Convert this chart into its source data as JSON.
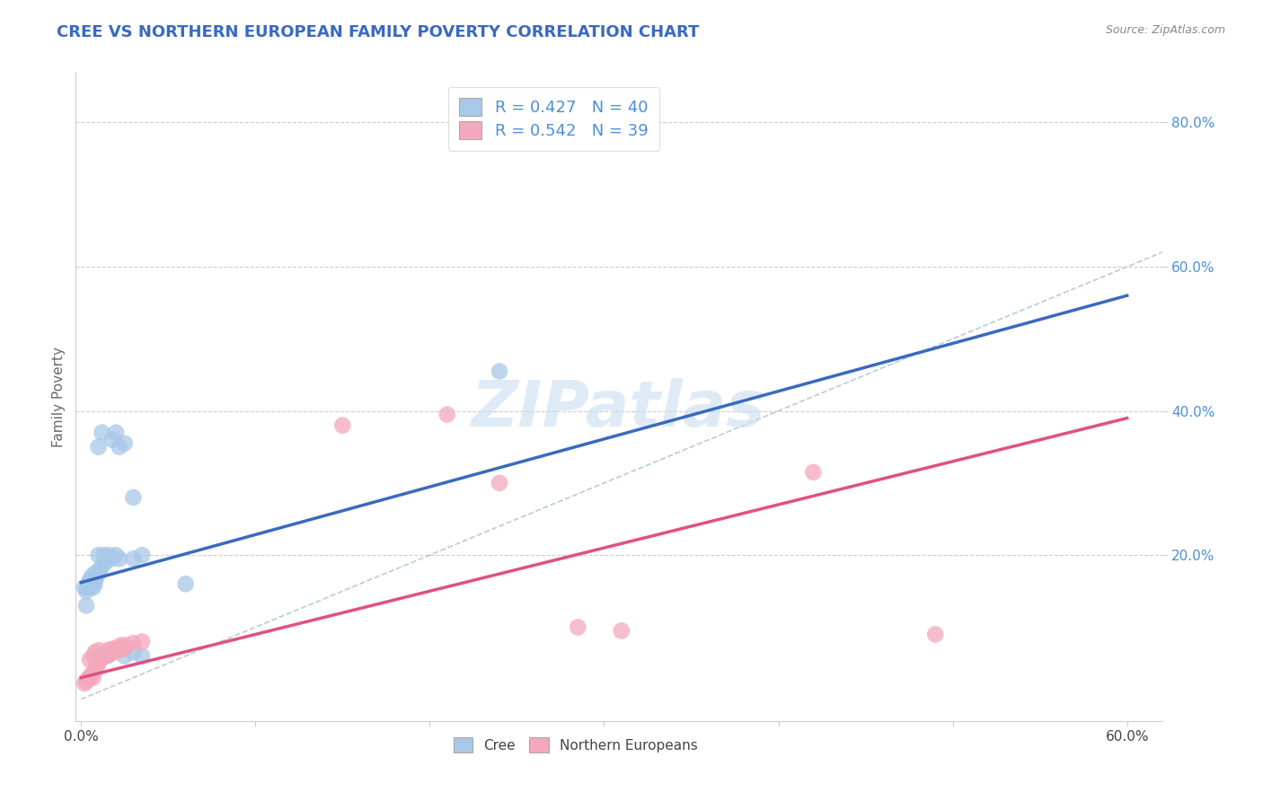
{
  "title": "CREE VS NORTHERN EUROPEAN FAMILY POVERTY CORRELATION CHART",
  "source": "Source: ZipAtlas.com",
  "ylabel": "Family Poverty",
  "xlim": [
    -0.003,
    0.62
  ],
  "ylim": [
    -0.03,
    0.87
  ],
  "xtick_vals": [
    0.0,
    0.1,
    0.2,
    0.3,
    0.4,
    0.5,
    0.6
  ],
  "xtick_bottom_labels": [
    "0.0%",
    "",
    "",
    "",
    "",
    "",
    "60.0%"
  ],
  "ytick_vals": [
    0.2,
    0.4,
    0.6,
    0.8
  ],
  "ytick_labels": [
    "20.0%",
    "40.0%",
    "60.0%",
    "80.0%"
  ],
  "legend_cree": "R = 0.427   N = 40",
  "legend_ne": "R = 0.542   N = 39",
  "cree_color": "#a8c8e8",
  "ne_color": "#f4a8bb",
  "cree_line_color": "#3a6abf",
  "ne_line_color": "#e05080",
  "diagonal_color": "#b0c8d8",
  "title_color": "#3a6abf",
  "axis_label_color": "#666666",
  "tick_color": "#4a90d9",
  "background_color": "#ffffff",
  "watermark_color": "#c8dff0",
  "cree_scatter": [
    [
      0.002,
      0.155
    ],
    [
      0.003,
      0.13
    ],
    [
      0.003,
      0.15
    ],
    [
      0.004,
      0.155
    ],
    [
      0.004,
      0.16
    ],
    [
      0.005,
      0.155
    ],
    [
      0.005,
      0.165
    ],
    [
      0.006,
      0.16
    ],
    [
      0.006,
      0.17
    ],
    [
      0.007,
      0.155
    ],
    [
      0.007,
      0.165
    ],
    [
      0.008,
      0.16
    ],
    [
      0.008,
      0.175
    ],
    [
      0.009,
      0.17
    ],
    [
      0.01,
      0.175
    ],
    [
      0.01,
      0.2
    ],
    [
      0.011,
      0.18
    ],
    [
      0.012,
      0.185
    ],
    [
      0.013,
      0.2
    ],
    [
      0.014,
      0.19
    ],
    [
      0.015,
      0.195
    ],
    [
      0.016,
      0.2
    ],
    [
      0.018,
      0.195
    ],
    [
      0.02,
      0.2
    ],
    [
      0.022,
      0.195
    ],
    [
      0.01,
      0.35
    ],
    [
      0.012,
      0.37
    ],
    [
      0.018,
      0.36
    ],
    [
      0.02,
      0.37
    ],
    [
      0.022,
      0.35
    ],
    [
      0.025,
      0.355
    ],
    [
      0.015,
      0.06
    ],
    [
      0.025,
      0.06
    ],
    [
      0.03,
      0.065
    ],
    [
      0.035,
      0.06
    ],
    [
      0.03,
      0.195
    ],
    [
      0.035,
      0.2
    ],
    [
      0.24,
      0.455
    ],
    [
      0.03,
      0.28
    ],
    [
      0.06,
      0.16
    ]
  ],
  "ne_scatter": [
    [
      0.002,
      0.022
    ],
    [
      0.003,
      0.025
    ],
    [
      0.004,
      0.028
    ],
    [
      0.005,
      0.03
    ],
    [
      0.005,
      0.055
    ],
    [
      0.006,
      0.035
    ],
    [
      0.007,
      0.03
    ],
    [
      0.007,
      0.06
    ],
    [
      0.008,
      0.04
    ],
    [
      0.008,
      0.065
    ],
    [
      0.009,
      0.045
    ],
    [
      0.01,
      0.05
    ],
    [
      0.01,
      0.068
    ],
    [
      0.011,
      0.055
    ],
    [
      0.012,
      0.058
    ],
    [
      0.013,
      0.062
    ],
    [
      0.014,
      0.06
    ],
    [
      0.015,
      0.065
    ],
    [
      0.015,
      0.068
    ],
    [
      0.016,
      0.062
    ],
    [
      0.017,
      0.065
    ],
    [
      0.018,
      0.07
    ],
    [
      0.019,
      0.065
    ],
    [
      0.02,
      0.07
    ],
    [
      0.021,
      0.072
    ],
    [
      0.022,
      0.068
    ],
    [
      0.023,
      0.075
    ],
    [
      0.024,
      0.07
    ],
    [
      0.025,
      0.072
    ],
    [
      0.026,
      0.075
    ],
    [
      0.03,
      0.078
    ],
    [
      0.035,
      0.08
    ],
    [
      0.15,
      0.38
    ],
    [
      0.21,
      0.395
    ],
    [
      0.24,
      0.3
    ],
    [
      0.285,
      0.1
    ],
    [
      0.31,
      0.095
    ],
    [
      0.42,
      0.315
    ],
    [
      0.49,
      0.09
    ]
  ],
  "cree_trend_x": [
    0.0,
    0.6
  ],
  "cree_trend_y": [
    0.162,
    0.56
  ],
  "ne_trend_x": [
    0.0,
    0.6
  ],
  "ne_trend_y": [
    0.03,
    0.39
  ]
}
